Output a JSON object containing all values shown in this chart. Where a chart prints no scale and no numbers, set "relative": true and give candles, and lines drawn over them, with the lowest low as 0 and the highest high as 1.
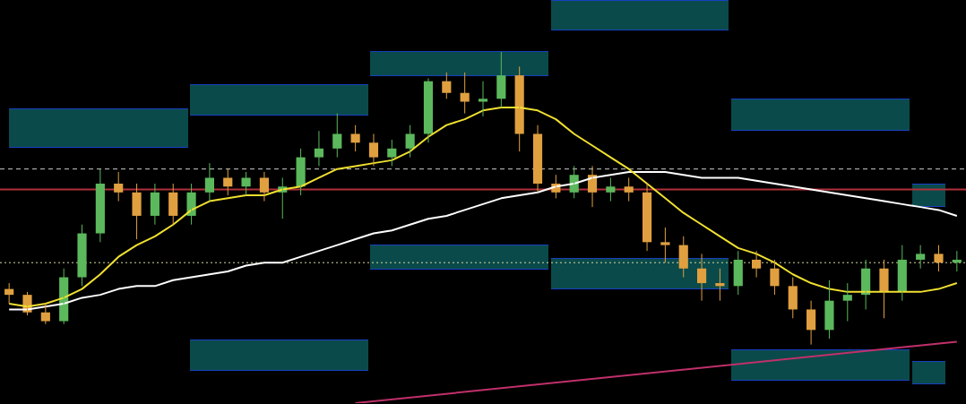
{
  "chart_data": {
    "type": "candlestick",
    "relative": true,
    "tick_labels": false,
    "legend": false,
    "colors": [
      "#e0a040",
      "#e0a040",
      "#e0a040",
      "#5cb85c",
      "#5cb85c",
      "#5cb85c",
      "#e0a040",
      "#e0a040",
      "#5cb85c",
      "#e0a040",
      "#5cb85c",
      "#5cb85c",
      "#e0a040",
      "#5cb85c",
      "#e0a040",
      "#5cb85c",
      "#5cb85c",
      "#5cb85c",
      "#5cb85c",
      "#e0a040",
      "#e0a040",
      "#5cb85c",
      "#5cb85c",
      "#5cb85c",
      "#e0a040",
      "#e0a040",
      "#5cb85c",
      "#5cb85c",
      "#e0a040",
      "#e0a040",
      "#e0a040",
      "#5cb85c",
      "#e0a040",
      "#5cb85c",
      "#e0a040",
      "#e0a040",
      "#e0a040",
      "#e0a040",
      "#e0a040",
      "#e0a040",
      "#5cb85c",
      "#e0a040",
      "#e0a040",
      "#e0a040",
      "#e0a040",
      "#5cb85c",
      "#5cb85c",
      "#5cb85c",
      "#e0a040",
      "#5cb85c",
      "#5cb85c",
      "#e0a040",
      "#5cb85c"
    ],
    "categories": [
      null,
      null,
      null,
      null,
      null,
      null,
      null,
      null,
      null,
      null,
      null,
      null,
      null,
      null,
      null,
      null,
      null,
      null,
      null,
      null,
      null,
      null,
      null,
      null,
      null,
      null,
      null,
      null,
      null,
      null,
      null,
      null,
      null,
      null,
      null,
      null,
      null,
      null,
      null,
      null,
      null,
      null,
      null,
      null,
      null,
      null,
      null,
      null,
      null,
      null,
      null,
      null,
      null
    ],
    "ohlc": [
      [
        0.19,
        0.21,
        0.14,
        0.17
      ],
      [
        0.17,
        0.18,
        0.1,
        0.11
      ],
      [
        0.11,
        0.14,
        0.07,
        0.08
      ],
      [
        0.08,
        0.26,
        0.07,
        0.23
      ],
      [
        0.23,
        0.41,
        0.2,
        0.38
      ],
      [
        0.38,
        0.6,
        0.35,
        0.55
      ],
      [
        0.55,
        0.59,
        0.49,
        0.52
      ],
      [
        0.52,
        0.55,
        0.36,
        0.44
      ],
      [
        0.44,
        0.55,
        0.41,
        0.52
      ],
      [
        0.52,
        0.55,
        0.41,
        0.44
      ],
      [
        0.44,
        0.55,
        0.41,
        0.52
      ],
      [
        0.52,
        0.62,
        0.49,
        0.57
      ],
      [
        0.57,
        0.6,
        0.51,
        0.54
      ],
      [
        0.54,
        0.59,
        0.51,
        0.57
      ],
      [
        0.57,
        0.59,
        0.49,
        0.52
      ],
      [
        0.52,
        0.57,
        0.43,
        0.54
      ],
      [
        0.54,
        0.67,
        0.51,
        0.64
      ],
      [
        0.64,
        0.73,
        0.61,
        0.67
      ],
      [
        0.67,
        0.79,
        0.64,
        0.72
      ],
      [
        0.72,
        0.75,
        0.66,
        0.69
      ],
      [
        0.69,
        0.72,
        0.61,
        0.64
      ],
      [
        0.64,
        0.7,
        0.61,
        0.67
      ],
      [
        0.67,
        0.75,
        0.64,
        0.72
      ],
      [
        0.72,
        0.91,
        0.69,
        0.9
      ],
      [
        0.9,
        0.93,
        0.84,
        0.86
      ],
      [
        0.86,
        0.93,
        0.79,
        0.83
      ],
      [
        0.83,
        0.9,
        0.78,
        0.84
      ],
      [
        0.84,
        1,
        0.81,
        0.92
      ],
      [
        0.92,
        0.95,
        0.66,
        0.72
      ],
      [
        0.72,
        0.75,
        0.52,
        0.55
      ],
      [
        0.55,
        0.58,
        0.5,
        0.52
      ],
      [
        0.52,
        0.61,
        0.5,
        0.58
      ],
      [
        0.58,
        0.61,
        0.47,
        0.52
      ],
      [
        0.52,
        0.57,
        0.49,
        0.54
      ],
      [
        0.54,
        0.57,
        0.49,
        0.52
      ],
      [
        0.52,
        0.55,
        0.32,
        0.35
      ],
      [
        0.35,
        0.4,
        0.28,
        0.34
      ],
      [
        0.34,
        0.37,
        0.23,
        0.26
      ],
      [
        0.26,
        0.31,
        0.15,
        0.21
      ],
      [
        0.21,
        0.26,
        0.15,
        0.2
      ],
      [
        0.2,
        0.32,
        0.17,
        0.29
      ],
      [
        0.29,
        0.32,
        0.23,
        0.26
      ],
      [
        0.26,
        0.29,
        0.17,
        0.2
      ],
      [
        0.2,
        0.23,
        0.09,
        0.12
      ],
      [
        0.12,
        0.15,
        0,
        0.05
      ],
      [
        0.05,
        0.22,
        0.02,
        0.15
      ],
      [
        0.15,
        0.21,
        0.08,
        0.17
      ],
      [
        0.17,
        0.29,
        0.12,
        0.26
      ],
      [
        0.26,
        0.29,
        0.09,
        0.18
      ],
      [
        0.18,
        0.34,
        0.15,
        0.29
      ],
      [
        0.29,
        0.34,
        0.26,
        0.31
      ],
      [
        0.31,
        0.34,
        0.25,
        0.28
      ],
      [
        0.28,
        0.32,
        0.25,
        0.29
      ]
    ],
    "series": [
      {
        "type": "line",
        "color": "#f0e030",
        "values": [
          0.14,
          0.13,
          0.14,
          0.16,
          0.19,
          0.24,
          0.3,
          0.34,
          0.37,
          0.41,
          0.46,
          0.49,
          0.5,
          0.51,
          0.51,
          0.53,
          0.54,
          0.57,
          0.6,
          0.61,
          0.62,
          0.63,
          0.66,
          0.71,
          0.75,
          0.77,
          0.8,
          0.81,
          0.81,
          0.8,
          0.77,
          0.72,
          0.68,
          0.64,
          0.6,
          0.55,
          0.5,
          0.45,
          0.41,
          0.37,
          0.33,
          0.31,
          0.28,
          0.24,
          0.21,
          0.19,
          0.18,
          0.18,
          0.18,
          0.18,
          0.18,
          0.19,
          0.21
        ]
      },
      {
        "type": "line",
        "color": "#ffffff",
        "values": [
          0.12,
          0.12,
          0.13,
          0.14,
          0.16,
          0.17,
          0.19,
          0.2,
          0.2,
          0.22,
          0.23,
          0.24,
          0.25,
          0.27,
          0.28,
          0.28,
          0.3,
          0.32,
          0.34,
          0.36,
          0.38,
          0.39,
          0.41,
          0.43,
          0.44,
          0.46,
          0.48,
          0.5,
          0.51,
          0.52,
          0.54,
          0.55,
          0.57,
          0.58,
          0.59,
          0.59,
          0.59,
          0.58,
          0.57,
          0.57,
          0.57,
          0.56,
          0.55,
          0.54,
          0.53,
          0.52,
          0.51,
          0.5,
          0.49,
          0.48,
          0.47,
          0.46,
          0.44
        ]
      },
      {
        "type": "line",
        "color": "#c0306a",
        "values": [
          null,
          null,
          null,
          null,
          null,
          null,
          null,
          null,
          null,
          null,
          null,
          null,
          null,
          null,
          null,
          null,
          null,
          null,
          null,
          -0.2,
          null,
          null,
          null,
          null,
          null,
          null,
          null,
          null,
          null,
          null,
          null,
          null,
          null,
          null,
          null,
          null,
          null,
          null,
          null,
          null,
          null,
          null,
          null,
          null,
          null,
          null,
          null,
          null,
          null,
          null,
          null,
          null,
          0.01
        ]
      }
    ],
    "ref_lines": [
      {
        "axis": "y",
        "value": 0.53,
        "color": "#b0303a",
        "line_style": "solid"
      },
      {
        "axis": "y",
        "value": 0.6,
        "color": "#cccccc",
        "line_style": "dashed"
      },
      {
        "axis": "y",
        "value": 0.28,
        "color": "#d8d8a0",
        "line_style": "dotted"
      }
    ]
  }
}
